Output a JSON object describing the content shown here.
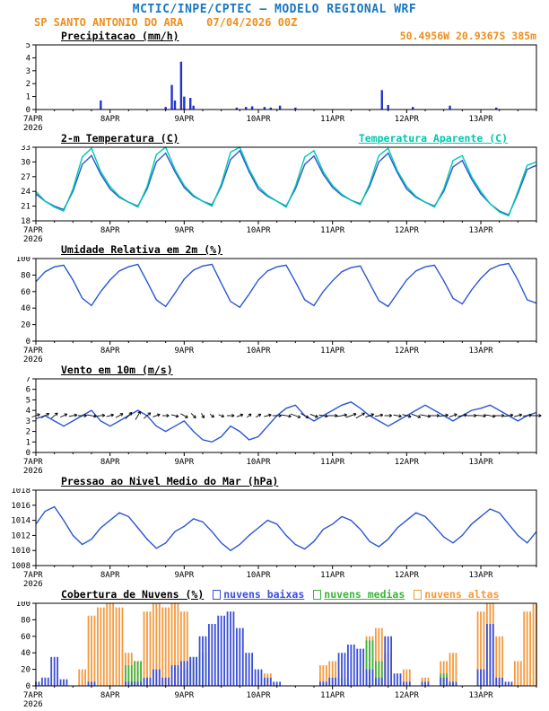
{
  "header": {
    "title": "MCTIC/INPE/CPTEC — MODELO REGIONAL WRF",
    "station": "SP SANTO ANTONIO DO ARA",
    "run": "07/04/2026 00Z",
    "location": "50.4956W 20.9367S 385m"
  },
  "colors": {
    "title_blue": "#1877c0",
    "orange": "#ef8e1b",
    "line_blue": "#2a55d5",
    "apparent_cyan": "#00c9ae",
    "precip_blue": "#2233cc",
    "cloud_low_blue": "#3a4fd8",
    "cloud_mid_green": "#3cb43c",
    "cloud_high_orange": "#f5993c"
  },
  "xaxis": {
    "hours_total": 162,
    "step_hours": 3,
    "ticks": [
      {
        "t": 0,
        "label": "7APR",
        "sublabel": "2026"
      },
      {
        "t": 24,
        "label": "8APR"
      },
      {
        "t": 48,
        "label": "9APR"
      },
      {
        "t": 72,
        "label": "10APR"
      },
      {
        "t": 96,
        "label": "11APR"
      },
      {
        "t": 120,
        "label": "12APR"
      },
      {
        "t": 144,
        "label": "13APR"
      }
    ]
  },
  "chart_data": [
    {
      "type": "bar",
      "title": "Precipitacao (mm/h)",
      "ylim": [
        0,
        5
      ],
      "yticks": [
        0,
        1,
        2,
        3,
        4,
        5
      ],
      "color": "#2233cc",
      "points": [
        {
          "t": 21,
          "v": 0.7
        },
        {
          "t": 42,
          "v": 0.2
        },
        {
          "t": 44,
          "v": 1.9
        },
        {
          "t": 45,
          "v": 0.7
        },
        {
          "t": 47,
          "v": 3.7
        },
        {
          "t": 48,
          "v": 1.0
        },
        {
          "t": 50,
          "v": 0.9
        },
        {
          "t": 51,
          "v": 0.3
        },
        {
          "t": 65,
          "v": 0.15
        },
        {
          "t": 68,
          "v": 0.2
        },
        {
          "t": 70,
          "v": 0.25
        },
        {
          "t": 74,
          "v": 0.2
        },
        {
          "t": 76,
          "v": 0.15
        },
        {
          "t": 79,
          "v": 0.3
        },
        {
          "t": 84,
          "v": 0.15
        },
        {
          "t": 112,
          "v": 1.5
        },
        {
          "t": 114,
          "v": 0.35
        },
        {
          "t": 122,
          "v": 0.2
        },
        {
          "t": 134,
          "v": 0.3
        },
        {
          "t": 149,
          "v": 0.15
        }
      ]
    },
    {
      "type": "line",
      "title": "2-m Temperatura (C)",
      "ylim": [
        18,
        33
      ],
      "yticks": [
        18,
        21,
        24,
        27,
        30,
        33
      ],
      "series": [
        {
          "name": "2-m Temperatura (C)",
          "color": "#2a55d5",
          "values": [
            23.5,
            22.0,
            21.0,
            20.3,
            24.0,
            29.5,
            31.3,
            27.5,
            24.5,
            22.8,
            21.8,
            21.0,
            24.5,
            30.0,
            31.8,
            28.0,
            24.8,
            23.0,
            22.0,
            21.3,
            25.0,
            30.5,
            32.3,
            28.0,
            24.5,
            23.0,
            22.0,
            21.0,
            24.5,
            29.5,
            31.2,
            27.5,
            24.8,
            23.2,
            22.2,
            21.5,
            25.0,
            30.0,
            31.8,
            27.8,
            24.5,
            22.8,
            21.8,
            21.0,
            24.0,
            29.0,
            30.3,
            26.5,
            23.5,
            21.5,
            20.0,
            19.2,
            23.5,
            28.5,
            29.3
          ]
        },
        {
          "name": "Temperatura Aparente (C)",
          "color": "#00c9ae",
          "values": [
            24.0,
            22.0,
            20.8,
            20.0,
            24.5,
            31.0,
            32.8,
            28.0,
            25.0,
            23.0,
            21.8,
            20.8,
            25.0,
            31.5,
            33.0,
            28.5,
            25.2,
            23.2,
            22.0,
            21.0,
            25.5,
            32.0,
            33.0,
            28.5,
            25.0,
            23.2,
            22.0,
            20.8,
            25.0,
            31.0,
            32.3,
            28.0,
            25.2,
            23.4,
            22.2,
            21.3,
            25.5,
            31.3,
            32.8,
            28.2,
            25.0,
            23.0,
            21.8,
            20.8,
            24.5,
            30.3,
            31.3,
            27.0,
            24.0,
            21.5,
            19.8,
            19.0,
            24.0,
            29.3,
            30.0
          ]
        }
      ]
    },
    {
      "type": "line",
      "title": "Umidade Relativa em 2m (%)",
      "ylim": [
        0,
        100
      ],
      "yticks": [
        0,
        20,
        40,
        60,
        80,
        100
      ],
      "series": [
        {
          "name": "Umidade Relativa em 2m (%)",
          "color": "#2a55d5",
          "values": [
            72,
            84,
            90,
            92,
            74,
            52,
            43,
            60,
            74,
            85,
            90,
            93,
            72,
            50,
            42,
            58,
            75,
            86,
            91,
            93,
            70,
            48,
            41,
            57,
            74,
            85,
            90,
            92,
            72,
            50,
            43,
            60,
            73,
            84,
            89,
            91,
            70,
            49,
            42,
            58,
            74,
            85,
            90,
            92,
            73,
            52,
            45,
            62,
            76,
            87,
            92,
            94,
            74,
            50,
            46
          ]
        }
      ]
    },
    {
      "type": "wind",
      "title": "Vento em 10m (m/s)",
      "ylim": [
        0,
        7
      ],
      "yticks": [
        0,
        1,
        2,
        3,
        4,
        5,
        6,
        7
      ],
      "barb_row_value": 3.5,
      "series": [
        {
          "name": "Vento em 10m (m/s)",
          "color": "#2a55d5",
          "values": [
            3.2,
            3.5,
            3.0,
            2.5,
            3.0,
            3.5,
            4.0,
            3.0,
            2.5,
            3.0,
            3.5,
            4.0,
            3.5,
            2.5,
            2.0,
            2.5,
            3.0,
            2.0,
            1.2,
            1.0,
            1.5,
            2.5,
            2.0,
            1.2,
            1.5,
            2.5,
            3.5,
            4.2,
            4.5,
            3.5,
            3.0,
            3.5,
            4.0,
            4.5,
            4.8,
            4.2,
            3.5,
            3.0,
            2.5,
            3.0,
            3.5,
            4.0,
            4.5,
            4.0,
            3.5,
            3.0,
            3.5,
            4.0,
            4.2,
            4.5,
            4.0,
            3.5,
            3.0,
            3.5,
            3.8
          ]
        }
      ],
      "directions_deg": [
        -20,
        -30,
        -40,
        -25,
        -10,
        0,
        10,
        -5,
        -15,
        -30,
        -45,
        -60,
        -40,
        -20,
        0,
        15,
        30,
        45,
        60,
        40,
        20,
        0,
        -20,
        -40,
        -30,
        -15,
        0,
        10,
        20,
        30,
        20,
        10,
        0,
        -10,
        -20,
        -30,
        -20,
        -10,
        0,
        10,
        15,
        20,
        10,
        0,
        -10,
        -20,
        -10,
        0,
        5,
        10,
        0,
        -10,
        -15,
        -5,
        0
      ]
    },
    {
      "type": "line",
      "title": "Pressao ao Nivel Medio do Mar (hPa)",
      "ylim": [
        1008,
        1018
      ],
      "yticks": [
        1008,
        1010,
        1012,
        1014,
        1016,
        1018
      ],
      "series": [
        {
          "name": "Pressao ao Nivel Medio do Mar (hPa)",
          "color": "#2a55d5",
          "values": [
            1013.5,
            1015.2,
            1015.8,
            1014.0,
            1012.0,
            1010.8,
            1011.5,
            1013.0,
            1014.0,
            1015.0,
            1014.5,
            1013.0,
            1011.5,
            1010.3,
            1011.0,
            1012.5,
            1013.2,
            1014.2,
            1013.8,
            1012.5,
            1011.0,
            1010.0,
            1010.8,
            1012.0,
            1013.0,
            1014.0,
            1013.5,
            1012.0,
            1010.8,
            1010.2,
            1011.2,
            1012.8,
            1013.5,
            1014.5,
            1014.0,
            1012.8,
            1011.2,
            1010.5,
            1011.5,
            1013.0,
            1014.0,
            1015.0,
            1014.5,
            1013.2,
            1011.8,
            1011.0,
            1012.0,
            1013.5,
            1014.5,
            1015.5,
            1015.0,
            1013.5,
            1012.0,
            1011.0,
            1012.5
          ]
        }
      ]
    },
    {
      "type": "multibar",
      "title": "Cobertura de Nuvens (%)",
      "ylim": [
        0,
        100
      ],
      "yticks": [
        0,
        20,
        40,
        60,
        80,
        100
      ],
      "series": [
        {
          "name": "nuvens baixas",
          "color": "#3a4fd8",
          "values": [
            5,
            10,
            35,
            8,
            0,
            0,
            5,
            0,
            0,
            0,
            5,
            5,
            10,
            20,
            10,
            25,
            30,
            35,
            60,
            75,
            85,
            90,
            70,
            40,
            20,
            10,
            5,
            0,
            0,
            0,
            0,
            5,
            10,
            40,
            50,
            45,
            20,
            10,
            60,
            15,
            5,
            0,
            5,
            0,
            10,
            5,
            0,
            0,
            20,
            75,
            10,
            5,
            0,
            0,
            0
          ]
        },
        {
          "name": "nuvens medias",
          "color": "#3cb43c",
          "values": [
            0,
            0,
            0,
            0,
            0,
            0,
            0,
            0,
            0,
            0,
            25,
            30,
            0,
            0,
            0,
            0,
            20,
            35,
            40,
            0,
            0,
            0,
            0,
            0,
            0,
            0,
            0,
            0,
            0,
            0,
            0,
            0,
            0,
            10,
            0,
            0,
            55,
            30,
            0,
            0,
            0,
            0,
            0,
            0,
            15,
            0,
            0,
            0,
            0,
            0,
            0,
            0,
            0,
            0,
            0
          ]
        },
        {
          "name": "nuvens altas",
          "color": "#f5993c",
          "values": [
            0,
            0,
            0,
            0,
            0,
            20,
            85,
            95,
            100,
            95,
            40,
            30,
            90,
            100,
            95,
            100,
            90,
            30,
            0,
            0,
            0,
            0,
            0,
            0,
            0,
            15,
            0,
            0,
            0,
            0,
            0,
            25,
            30,
            0,
            0,
            0,
            60,
            70,
            40,
            0,
            20,
            0,
            10,
            0,
            30,
            40,
            0,
            0,
            90,
            100,
            60,
            0,
            30,
            90,
            100
          ]
        }
      ]
    }
  ]
}
